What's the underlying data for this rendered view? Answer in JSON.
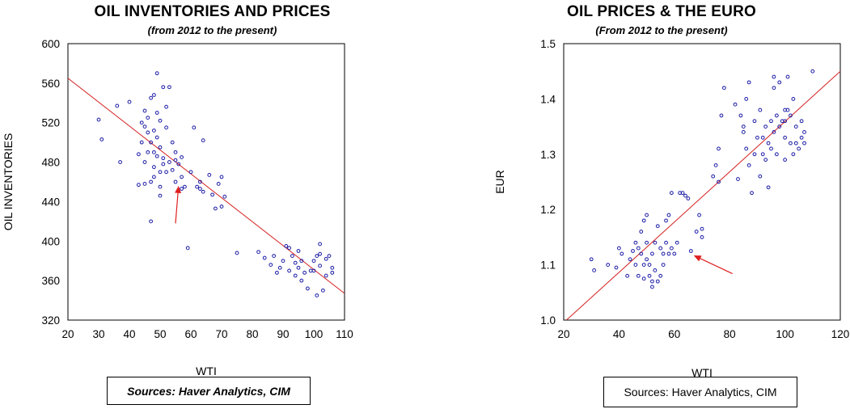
{
  "chart_data": [
    {
      "type": "scatter",
      "title": "OIL INVENTORIES AND PRICES",
      "subtitle": "(from 2012 to the present)",
      "xlabel": "WTI",
      "ylabel": "OIL INVENTORIES",
      "xlim": [
        20,
        110
      ],
      "ylim": [
        320,
        600
      ],
      "xticks": [
        20,
        30,
        40,
        50,
        60,
        70,
        80,
        90,
        100,
        110
      ],
      "yticks": [
        320,
        360,
        400,
        440,
        480,
        520,
        560,
        600
      ],
      "marker_color": "#1a1aa6",
      "fit_line_color": "#d42020",
      "arrow_color": "#e02020",
      "fit_line": [
        [
          20,
          565
        ],
        [
          110,
          347
        ]
      ],
      "annotation_arrow": {
        "from": [
          55,
          418
        ],
        "to": [
          56,
          456
        ]
      },
      "points": [
        [
          30,
          523
        ],
        [
          31,
          503
        ],
        [
          36,
          537
        ],
        [
          37,
          480
        ],
        [
          40,
          541
        ],
        [
          43,
          488
        ],
        [
          43,
          457
        ],
        [
          44,
          520
        ],
        [
          44,
          500
        ],
        [
          45,
          532
        ],
        [
          45,
          516
        ],
        [
          45,
          458
        ],
        [
          45,
          480
        ],
        [
          46,
          525
        ],
        [
          46,
          510
        ],
        [
          46,
          490
        ],
        [
          47,
          545
        ],
        [
          47,
          500
        ],
        [
          47,
          460
        ],
        [
          47,
          420
        ],
        [
          48,
          548
        ],
        [
          48,
          512
        ],
        [
          48,
          490
        ],
        [
          48,
          475
        ],
        [
          48,
          465
        ],
        [
          49,
          570
        ],
        [
          49,
          530
        ],
        [
          49,
          505
        ],
        [
          49,
          486
        ],
        [
          50,
          522
        ],
        [
          50,
          495
        ],
        [
          50,
          470
        ],
        [
          50,
          455
        ],
        [
          50,
          446
        ],
        [
          51,
          556
        ],
        [
          51,
          484
        ],
        [
          51,
          478
        ],
        [
          52,
          536
        ],
        [
          52,
          515
        ],
        [
          52,
          470
        ],
        [
          53,
          556
        ],
        [
          53,
          480
        ],
        [
          54,
          500
        ],
        [
          54,
          472
        ],
        [
          55,
          490
        ],
        [
          55,
          482
        ],
        [
          55,
          460
        ],
        [
          56,
          478
        ],
        [
          57,
          485
        ],
        [
          57,
          465
        ],
        [
          57,
          453
        ],
        [
          58,
          455
        ],
        [
          59,
          393
        ],
        [
          60,
          470
        ],
        [
          61,
          515
        ],
        [
          62,
          455
        ],
        [
          63,
          460
        ],
        [
          63,
          453
        ],
        [
          64,
          502
        ],
        [
          64,
          450
        ],
        [
          66,
          467
        ],
        [
          67,
          447
        ],
        [
          68,
          433
        ],
        [
          69,
          458
        ],
        [
          70,
          465
        ],
        [
          70,
          435
        ],
        [
          71,
          445
        ],
        [
          75,
          388
        ],
        [
          82,
          389
        ],
        [
          84,
          383
        ],
        [
          86,
          376
        ],
        [
          87,
          385
        ],
        [
          88,
          368
        ],
        [
          89,
          373
        ],
        [
          90,
          380
        ],
        [
          91,
          395
        ],
        [
          92,
          393
        ],
        [
          92,
          370
        ],
        [
          93,
          385
        ],
        [
          94,
          365
        ],
        [
          94,
          378
        ],
        [
          95,
          390
        ],
        [
          95,
          373
        ],
        [
          96,
          380
        ],
        [
          96,
          360
        ],
        [
          97,
          368
        ],
        [
          98,
          352
        ],
        [
          99,
          370
        ],
        [
          100,
          380
        ],
        [
          100,
          370
        ],
        [
          101,
          345
        ],
        [
          101,
          385
        ],
        [
          102,
          397
        ],
        [
          102,
          387
        ],
        [
          102,
          375
        ],
        [
          103,
          350
        ],
        [
          104,
          382
        ],
        [
          104,
          365
        ],
        [
          105,
          385
        ],
        [
          106,
          373
        ],
        [
          106,
          368
        ]
      ],
      "source_label": "Sources:  Haver Analytics, CIM"
    },
    {
      "type": "scatter",
      "title": "OIL PRICES & THE EURO",
      "subtitle": "(From 2012 to the present)",
      "xlabel": "WTI",
      "ylabel": "EUR",
      "xlim": [
        20,
        120
      ],
      "ylim": [
        1.0,
        1.5
      ],
      "xticks": [
        20,
        40,
        60,
        80,
        100,
        120
      ],
      "yticks": [
        "1.0",
        "1.1",
        "1.2",
        "1.3",
        "1.4",
        "1.5"
      ],
      "marker_color": "#1a1aa6",
      "fit_line_color": "#d42020",
      "arrow_color": "#e02020",
      "fit_line": [
        [
          21,
          1.0
        ],
        [
          120,
          1.45
        ]
      ],
      "annotation_arrow": {
        "from": [
          81,
          1.084
        ],
        "to": [
          67,
          1.117
        ]
      },
      "points": [
        [
          30,
          1.11
        ],
        [
          31,
          1.09
        ],
        [
          36,
          1.1
        ],
        [
          39,
          1.095
        ],
        [
          40,
          1.13
        ],
        [
          41,
          1.12
        ],
        [
          43,
          1.08
        ],
        [
          44,
          1.11
        ],
        [
          45,
          1.125
        ],
        [
          46,
          1.1
        ],
        [
          46,
          1.14
        ],
        [
          47,
          1.08
        ],
        [
          47,
          1.13
        ],
        [
          48,
          1.16
        ],
        [
          48,
          1.12
        ],
        [
          49,
          1.18
        ],
        [
          49,
          1.1
        ],
        [
          49,
          1.075
        ],
        [
          50,
          1.19
        ],
        [
          50,
          1.14
        ],
        [
          50,
          1.11
        ],
        [
          51,
          1.1
        ],
        [
          51,
          1.08
        ],
        [
          52,
          1.12
        ],
        [
          52,
          1.07
        ],
        [
          52,
          1.06
        ],
        [
          53,
          1.14
        ],
        [
          53,
          1.09
        ],
        [
          54,
          1.17
        ],
        [
          54,
          1.07
        ],
        [
          55,
          1.08
        ],
        [
          55,
          1.13
        ],
        [
          56,
          1.12
        ],
        [
          56,
          1.1
        ],
        [
          57,
          1.18
        ],
        [
          57,
          1.14
        ],
        [
          58,
          1.19
        ],
        [
          58,
          1.12
        ],
        [
          59,
          1.23
        ],
        [
          59,
          1.13
        ],
        [
          60,
          1.12
        ],
        [
          61,
          1.14
        ],
        [
          62,
          1.23
        ],
        [
          63,
          1.23
        ],
        [
          64,
          1.225
        ],
        [
          65,
          1.22
        ],
        [
          66,
          1.125
        ],
        [
          68,
          1.16
        ],
        [
          69,
          1.19
        ],
        [
          70,
          1.165
        ],
        [
          70,
          1.15
        ],
        [
          74,
          1.26
        ],
        [
          75,
          1.28
        ],
        [
          76,
          1.25
        ],
        [
          76,
          1.31
        ],
        [
          77,
          1.37
        ],
        [
          78,
          1.42
        ],
        [
          82,
          1.39
        ],
        [
          83,
          1.255
        ],
        [
          84,
          1.37
        ],
        [
          85,
          1.35
        ],
        [
          85,
          1.34
        ],
        [
          86,
          1.4
        ],
        [
          86,
          1.31
        ],
        [
          87,
          1.43
        ],
        [
          87,
          1.28
        ],
        [
          88,
          1.23
        ],
        [
          89,
          1.36
        ],
        [
          89,
          1.3
        ],
        [
          90,
          1.33
        ],
        [
          91,
          1.38
        ],
        [
          91,
          1.26
        ],
        [
          92,
          1.33
        ],
        [
          92,
          1.3
        ],
        [
          93,
          1.29
        ],
        [
          93,
          1.35
        ],
        [
          94,
          1.24
        ],
        [
          94,
          1.32
        ],
        [
          95,
          1.36
        ],
        [
          95,
          1.31
        ],
        [
          96,
          1.44
        ],
        [
          96,
          1.42
        ],
        [
          96,
          1.34
        ],
        [
          97,
          1.37
        ],
        [
          97,
          1.3
        ],
        [
          98,
          1.43
        ],
        [
          98,
          1.35
        ],
        [
          99,
          1.36
        ],
        [
          100,
          1.38
        ],
        [
          100,
          1.36
        ],
        [
          100,
          1.33
        ],
        [
          100,
          1.29
        ],
        [
          101,
          1.44
        ],
        [
          101,
          1.38
        ],
        [
          102,
          1.37
        ],
        [
          102,
          1.32
        ],
        [
          103,
          1.4
        ],
        [
          103,
          1.3
        ],
        [
          104,
          1.35
        ],
        [
          104,
          1.32
        ],
        [
          105,
          1.31
        ],
        [
          106,
          1.33
        ],
        [
          106,
          1.36
        ],
        [
          107,
          1.34
        ],
        [
          107,
          1.32
        ],
        [
          110,
          1.45
        ]
      ],
      "source_label": "Sources:  Haver Analytics, CIM"
    }
  ]
}
